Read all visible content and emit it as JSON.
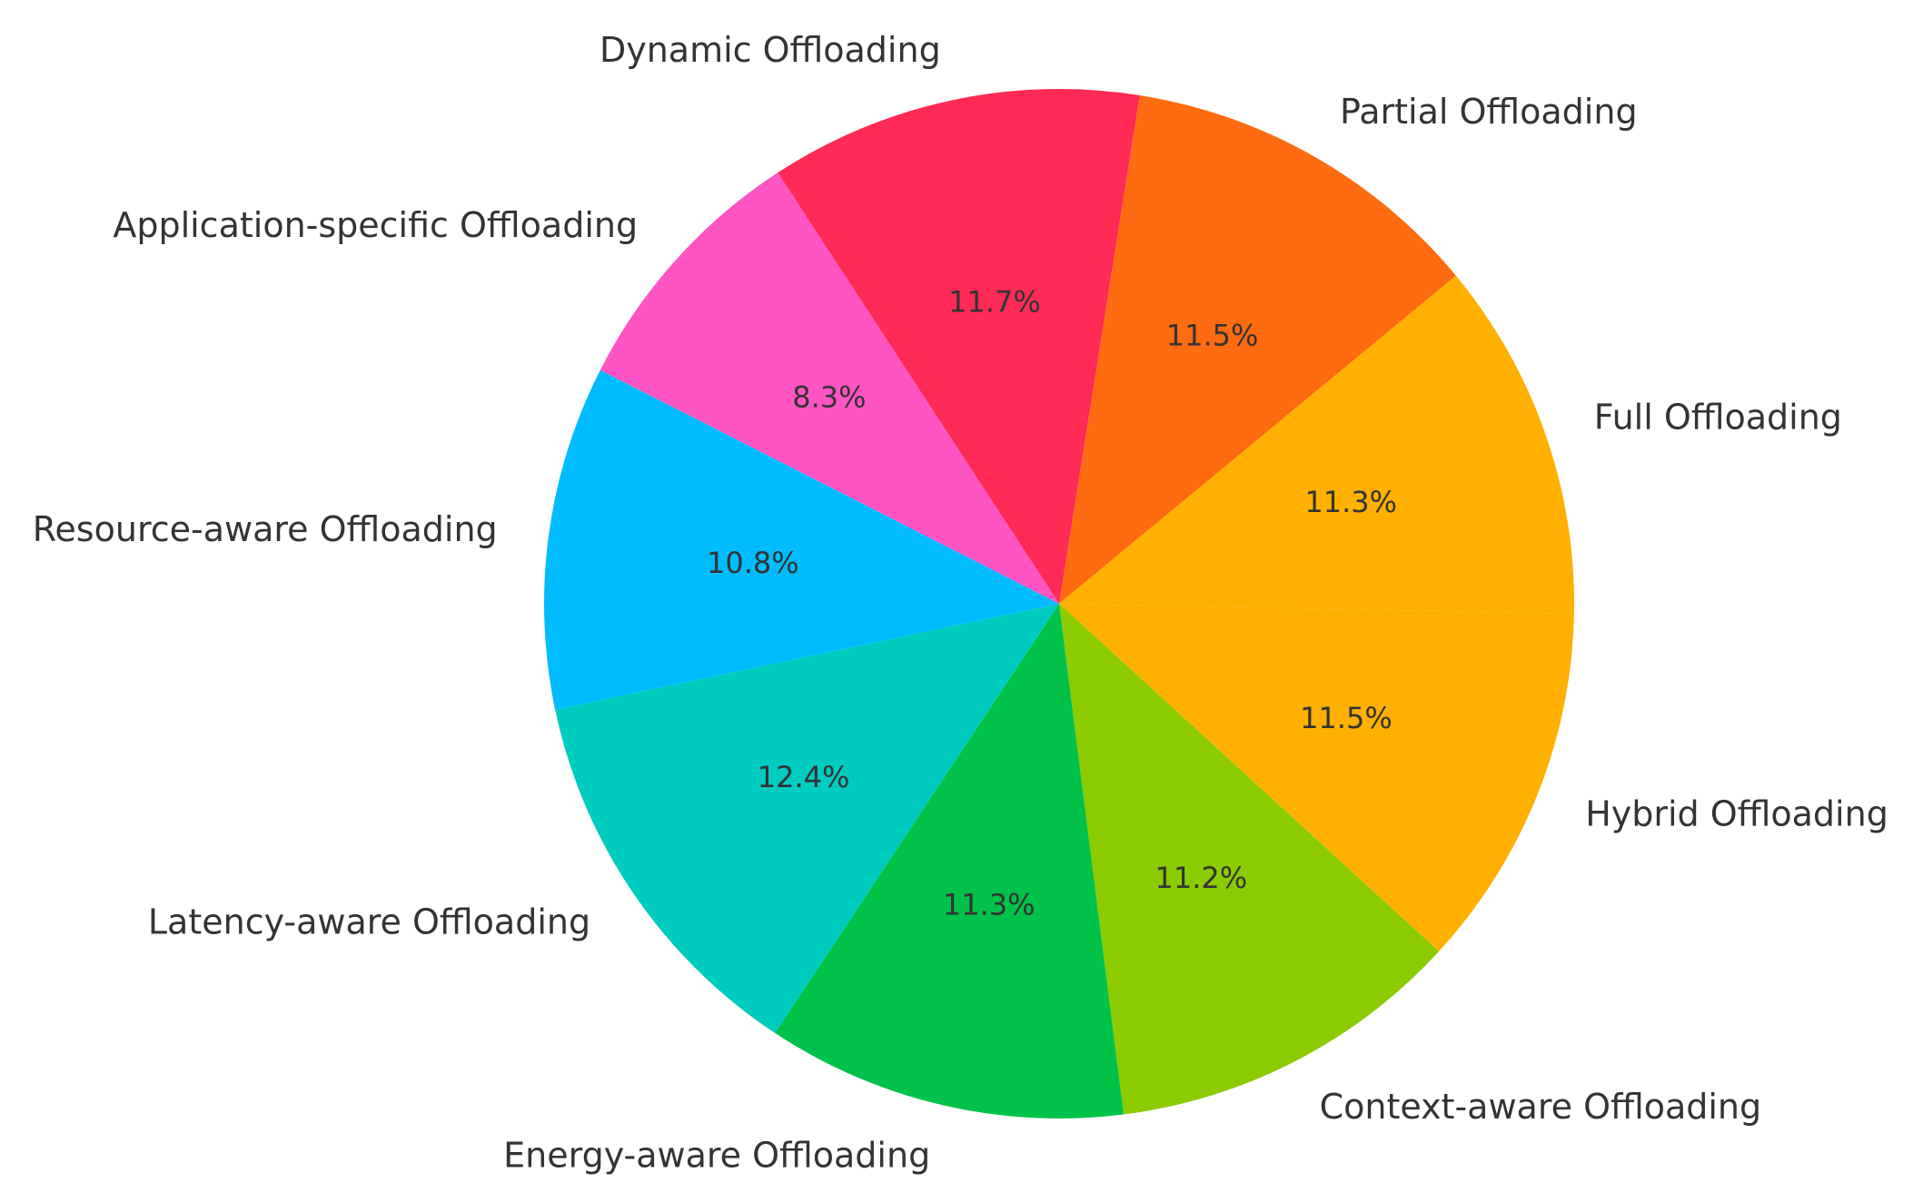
{
  "chart_data": {
    "type": "pie",
    "title": "",
    "categories": [
      "Partial Offloading",
      "Full Offloading",
      "Hybrid Offloading",
      "Context-aware Offloading",
      "Energy-aware Offloading",
      "Latency-aware Offloading",
      "Resource-aware Offloading",
      "Application-specific Offloading",
      "Dynamic Offloading"
    ],
    "values": [
      11.5,
      11.3,
      11.5,
      11.2,
      11.3,
      12.4,
      10.8,
      8.3,
      11.7
    ],
    "value_labels": [
      "11.5%",
      "11.3%",
      "11.5%",
      "11.2%",
      "11.3%",
      "12.4%",
      "10.8%",
      "8.3%",
      "11.7%"
    ],
    "colors": [
      "#ff6b10",
      "#ffb000",
      "#ffb000",
      "#8ccb00",
      "#00c24a",
      "#00cbbf",
      "#00bcff",
      "#ff55c4",
      "#ff2a55"
    ],
    "start_angle_deg": 81,
    "direction": "clockwise",
    "legend": "none",
    "grid": false
  }
}
